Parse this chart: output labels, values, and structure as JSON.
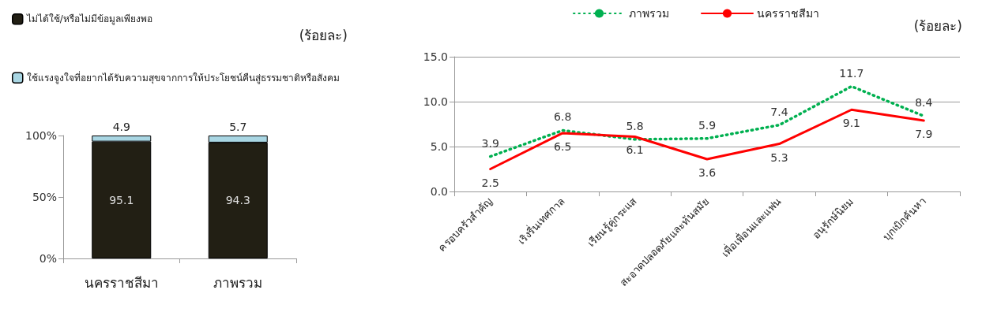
{
  "chart_data": [
    {
      "type": "bar",
      "stacked": true,
      "ylabel": "(ร้อยละ)",
      "categories": [
        "นครราชสีมา",
        "ภาพรวม"
      ],
      "series": [
        {
          "name": "ไม่ได้ใช้/หรือไม่มีข้อมูลเพียงพอ",
          "color": "#221f14",
          "values": [
            95.1,
            94.3
          ]
        },
        {
          "name": "ใช้แรงจูงใจที่อยากได้รับความสุขจากการให้ประโยชน์คืนสู่ธรรมชาติหรือสังคม",
          "color": "#a9d6e3",
          "values": [
            4.9,
            5.7
          ]
        }
      ],
      "ylim": [
        0,
        100
      ],
      "yticks": [
        {
          "value": 0,
          "label": "0%"
        },
        {
          "value": 50,
          "label": "50%"
        },
        {
          "value": 100,
          "label": "100%"
        }
      ],
      "data_labels": true,
      "legend": "top left",
      "grid": false
    },
    {
      "type": "line",
      "ylabel": "(ร้อยละ)",
      "categories": [
        "ครอบครัวสำคัญ",
        "เริงรื่นเทศกาล",
        "เรียนรู้คู่กระแส",
        "สะอาดปลอดภัยและทันสมัย",
        "เพื่อเพื่อนและแฟน",
        "อนุรักษ์นิยม",
        "บุกเบิกค้นหา"
      ],
      "series": [
        {
          "name": "ภาพรวม",
          "color": "#00b050",
          "line_style": "dotted",
          "values": [
            3.9,
            6.8,
            5.8,
            5.9,
            7.4,
            11.7,
            8.4
          ]
        },
        {
          "name": "นครราชสีมา",
          "color": "#ff0000",
          "line_style": "solid",
          "values": [
            2.5,
            6.5,
            6.1,
            3.6,
            5.3,
            9.1,
            7.9
          ]
        }
      ],
      "ylim": [
        0,
        15
      ],
      "yticks": [
        {
          "value": 0,
          "label": "0.0"
        },
        {
          "value": 5,
          "label": "5.0"
        },
        {
          "value": 10,
          "label": "10.0"
        },
        {
          "value": 15,
          "label": "15.0"
        }
      ],
      "data_labels": true,
      "legend": "top",
      "grid": "y",
      "marker": "none"
    }
  ]
}
